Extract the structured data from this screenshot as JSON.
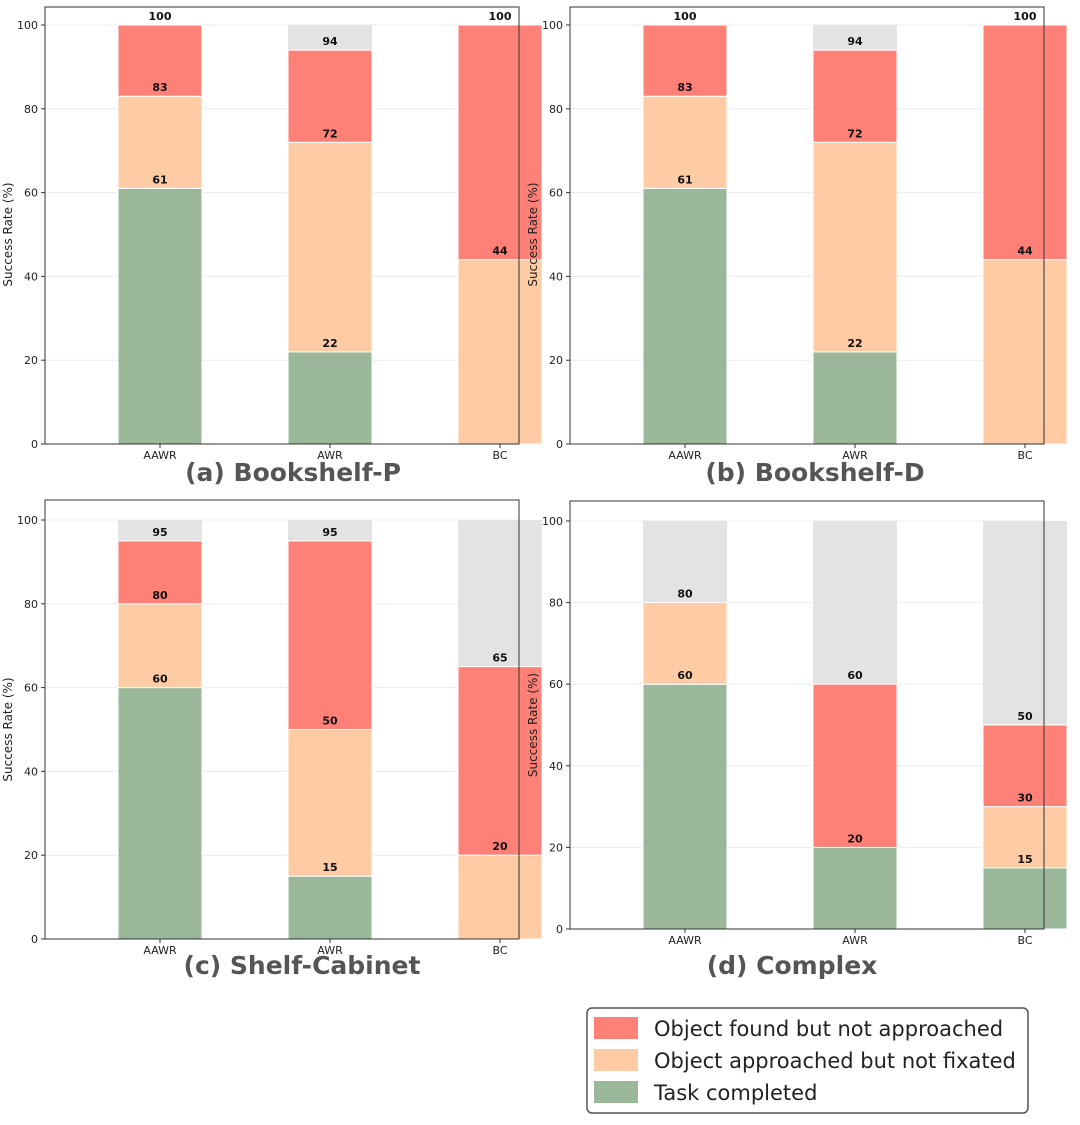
{
  "colors": {
    "found": "#ff8077",
    "approached": "#fecba5",
    "completed": "#9ab899",
    "remainder": "#e3e3e3"
  },
  "legend": {
    "items": [
      {
        "label": "Object found but not approached",
        "color": "#ff8077"
      },
      {
        "label": "Object approached but not fixated",
        "color": "#fecba5"
      },
      {
        "label": "Task completed",
        "color": "#9ab899"
      }
    ]
  },
  "chart_data": [
    {
      "type": "bar",
      "stacked": true,
      "subtitle": "(a) Bookshelf-P",
      "ylabel": "Success Rate (%)",
      "ylim": [
        0,
        100
      ],
      "yticks": [
        "0",
        "20",
        "40",
        "60",
        "80",
        "100"
      ],
      "categories": [
        "AAWR",
        "AWR",
        "BC"
      ],
      "series": [
        {
          "name": "Task completed",
          "key": "completed",
          "values": [
            61,
            22,
            0
          ]
        },
        {
          "name": "Object approached but not fixated",
          "key": "approached",
          "values": [
            22,
            50,
            44
          ]
        },
        {
          "name": "Object found but not approached",
          "key": "found",
          "values": [
            17,
            22,
            56
          ]
        }
      ],
      "bar_labels": [
        [
          "61",
          "83",
          "100"
        ],
        [
          "22",
          "72",
          "94"
        ],
        [
          "44",
          "100"
        ]
      ]
    },
    {
      "type": "bar",
      "stacked": true,
      "subtitle": "(b) Bookshelf-D",
      "ylabel": "Success Rate (%)",
      "ylim": [
        0,
        100
      ],
      "yticks": [
        "0",
        "20",
        "40",
        "60",
        "80",
        "100"
      ],
      "categories": [
        "AAWR",
        "AWR",
        "BC"
      ],
      "series": [
        {
          "name": "Task completed",
          "key": "completed",
          "values": [
            61,
            22,
            0
          ]
        },
        {
          "name": "Object approached but not fixated",
          "key": "approached",
          "values": [
            22,
            50,
            44
          ]
        },
        {
          "name": "Object found but not approached",
          "key": "found",
          "values": [
            17,
            22,
            56
          ]
        }
      ],
      "bar_labels": [
        [
          "61",
          "83",
          "100"
        ],
        [
          "22",
          "72",
          "94"
        ],
        [
          "44",
          "100"
        ]
      ]
    },
    {
      "type": "bar",
      "stacked": true,
      "subtitle": "(c) Shelf-Cabinet",
      "ylabel": "Success Rate (%)",
      "ylim": [
        0,
        100
      ],
      "yticks": [
        "0",
        "20",
        "40",
        "60",
        "80",
        "100"
      ],
      "categories": [
        "AAWR",
        "AWR",
        "BC"
      ],
      "series": [
        {
          "name": "Task completed",
          "key": "completed",
          "values": [
            60,
            15,
            0
          ]
        },
        {
          "name": "Object approached but not fixated",
          "key": "approached",
          "values": [
            20,
            35,
            20
          ]
        },
        {
          "name": "Object found but not approached",
          "key": "found",
          "values": [
            15,
            45,
            45
          ]
        }
      ],
      "bar_labels": [
        [
          "60",
          "80",
          "95"
        ],
        [
          "15",
          "50",
          "95"
        ],
        [
          "20",
          "65"
        ]
      ]
    },
    {
      "type": "bar",
      "stacked": true,
      "subtitle": "(d) Complex",
      "ylabel": "Success Rate (%)",
      "ylim": [
        0,
        100
      ],
      "yticks": [
        "0",
        "20",
        "40",
        "60",
        "80",
        "100"
      ],
      "categories": [
        "AAWR",
        "AWR",
        "BC"
      ],
      "series": [
        {
          "name": "Task completed",
          "key": "completed",
          "values": [
            60,
            20,
            15
          ]
        },
        {
          "name": "Object approached but not fixated",
          "key": "approached",
          "values": [
            20,
            0,
            15
          ]
        },
        {
          "name": "Object found but not approached",
          "key": "found",
          "values": [
            0,
            40,
            20
          ]
        }
      ],
      "bar_labels": [
        [
          "60",
          "80"
        ],
        [
          "20",
          "60"
        ],
        [
          "15",
          "30",
          "50"
        ]
      ]
    }
  ]
}
